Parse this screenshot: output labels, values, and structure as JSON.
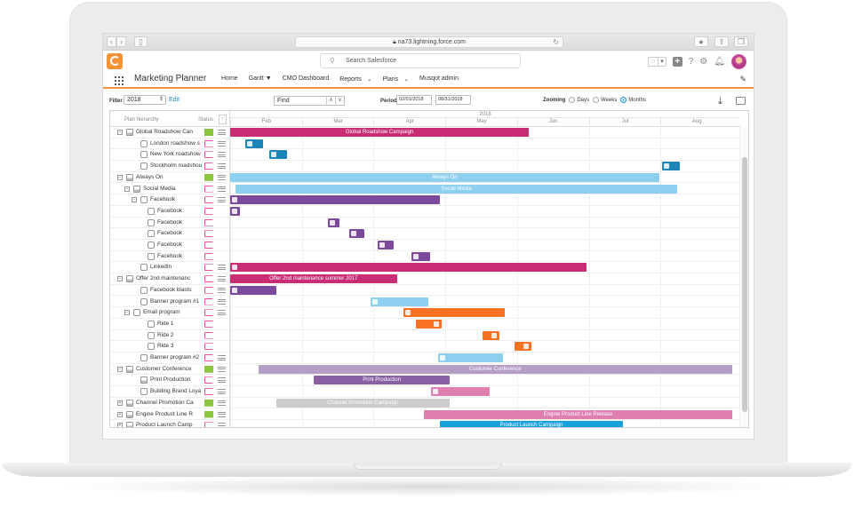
{
  "browser": {
    "url": "na73.lightning.force.com",
    "back": "‹",
    "forward": "›"
  },
  "header": {
    "search_placeholder": "Search Salesforce",
    "app_name": "Marketing Planner",
    "nav": [
      {
        "label": "Home"
      },
      {
        "label": "Gantt ▼"
      },
      {
        "label": "CMO Dashboard"
      },
      {
        "label": "Reports",
        "chevron": "⌄"
      },
      {
        "label": "Plans",
        "chevron": "⌄"
      },
      {
        "label": "Musqot admin"
      }
    ],
    "icons": [
      "favorites-star-icon",
      "add-icon",
      "help-icon",
      "setup-gear-icon",
      "notifications-bell-icon",
      "user-avatar"
    ]
  },
  "toolbar": {
    "filter_label": "Filter",
    "filter_value": "2018",
    "edit_label": "Edit",
    "find_placeholder": "Find",
    "period_label": "Period",
    "period_start": "02/01/2018",
    "period_end": "08/31/2018",
    "zooming_label": "Zooming",
    "zoom_options": [
      "Days",
      "Weeks",
      "Months"
    ],
    "zoom_selected": "Months"
  },
  "gantt": {
    "columns": {
      "hierarchy": "Plan hierarchy",
      "status": "Status"
    },
    "year": "2018",
    "months": [
      "Feb",
      "Mar",
      "Apr",
      "May",
      "Jun",
      "Jul",
      "Aug"
    ],
    "colors": {
      "magenta": "#c92d74",
      "light_blue": "#8dcfee",
      "dark_blue": "#1b85b8",
      "purple": "#7b4a9a",
      "orange": "#f97224",
      "lavender": "#b49ec6",
      "mauve": "#8a5fa3",
      "pink": "#df7fb0",
      "gray": "#cccccc",
      "bright_blue": "#1aa0dc",
      "status_green": "#8cc63f",
      "status_pink": "#e0529c"
    },
    "rows": [
      {
        "label": "Global Roadshow Can",
        "indent": 0,
        "toggle": "−",
        "type": "plan",
        "status": "green",
        "menu": true,
        "bar": {
          "start": 0,
          "end": 59.5,
          "color": "#c92d74",
          "text": "Global Roadshow Campaign"
        }
      },
      {
        "label": "London roadshow s",
        "indent": 2,
        "type": "activity",
        "status": "pink",
        "menu": true,
        "bar": {
          "start": 3,
          "end": 6.5,
          "color": "#1b85b8",
          "text": "",
          "icon": true
        }
      },
      {
        "label": "New York roadshow",
        "indent": 2,
        "type": "activity",
        "status": "pink",
        "menu": true,
        "bar": {
          "start": 7.8,
          "end": 11.3,
          "color": "#1b85b8",
          "text": "",
          "icon": true
        }
      },
      {
        "label": "Stockholm roadshou",
        "indent": 2,
        "type": "activity",
        "status": "pink",
        "menu": true,
        "bar": {
          "start": 86,
          "end": 89.5,
          "color": "#1b85b8",
          "text": "",
          "icon": true
        }
      },
      {
        "label": "Always On",
        "indent": 0,
        "toggle": "−",
        "type": "plan",
        "status": "green",
        "menu": true,
        "bar": {
          "start": 0,
          "end": 85.4,
          "color": "#8dcfee",
          "text": "Always On"
        }
      },
      {
        "label": "Social Media",
        "indent": 1,
        "toggle": "−",
        "type": "plan",
        "status": "pink",
        "menu": true,
        "bar": {
          "start": 1.1,
          "end": 89,
          "color": "#8dcfee",
          "text": "Social Media"
        }
      },
      {
        "label": "Facebook",
        "indent": 2,
        "toggle": "−",
        "type": "activity",
        "status": "pink",
        "menu": true,
        "bar": {
          "start": 0,
          "end": 41.8,
          "color": "#7b4a9a",
          "text": "",
          "icon": true
        }
      },
      {
        "label": "Facebook",
        "indent": 3,
        "type": "activity",
        "status": "pink",
        "menu": false,
        "bar": {
          "start": 0,
          "end": 1.9,
          "color": "#7b4a9a",
          "text": "",
          "icon": true
        }
      },
      {
        "label": "Facebook",
        "indent": 3,
        "type": "activity",
        "status": "pink",
        "menu": false,
        "bar": {
          "start": 19.5,
          "end": 21.8,
          "color": "#7b4a9a",
          "text": "",
          "icon": true
        }
      },
      {
        "label": "Facebook",
        "indent": 3,
        "type": "activity",
        "status": "pink",
        "menu": false,
        "bar": {
          "start": 23.8,
          "end": 26.7,
          "color": "#7b4a9a",
          "text": "",
          "icon": true
        }
      },
      {
        "label": "Facebook",
        "indent": 3,
        "type": "activity",
        "status": "pink",
        "menu": false,
        "bar": {
          "start": 29.4,
          "end": 32.5,
          "color": "#7b4a9a",
          "text": "",
          "icon": true
        }
      },
      {
        "label": "Facebook",
        "indent": 3,
        "type": "activity",
        "status": "pink",
        "menu": false,
        "bar": {
          "start": 36.1,
          "end": 39.9,
          "color": "#7b4a9a",
          "text": "",
          "icon": true
        }
      },
      {
        "label": "LinkedIn",
        "indent": 2,
        "type": "activity",
        "status": "pink",
        "menu": true,
        "bar": {
          "start": 0,
          "end": 71,
          "color": "#c92d74",
          "text": "",
          "icon": true
        }
      },
      {
        "label": "Offer 2nd maintenanc",
        "indent": 0,
        "toggle": "−",
        "type": "plan",
        "status": "pink",
        "menu": true,
        "bar": {
          "start": 0,
          "end": 33.2,
          "color": "#c92d74",
          "text": "Offer 2nd maintenance summer 2017"
        }
      },
      {
        "label": "Facebook blasts",
        "indent": 2,
        "type": "activity",
        "status": "pink",
        "menu": true,
        "bar": {
          "start": 0,
          "end": 9.2,
          "color": "#7b4a9a",
          "text": "",
          "icon": true
        }
      },
      {
        "label": "Banner program #1",
        "indent": 2,
        "type": "activity",
        "status": "pink",
        "menu": true,
        "bar": {
          "start": 27.9,
          "end": 39.4,
          "color": "#8dcfee",
          "text": "",
          "icon": true
        }
      },
      {
        "label": "Email program",
        "indent": 1,
        "toggle": "−",
        "type": "activity",
        "status": "pink",
        "menu": true,
        "bar": {
          "start": 34.6,
          "end": 54.7,
          "color": "#f97224",
          "text": "",
          "icon": true
        }
      },
      {
        "label": "Ride 1",
        "indent": 3,
        "type": "activity",
        "status": "pink",
        "menu": false,
        "bar": {
          "start": 37,
          "end": 42.2,
          "color": "#f97224",
          "text": "",
          "icon": true,
          "icon_right": true
        }
      },
      {
        "label": "Ride 2",
        "indent": 3,
        "type": "activity",
        "status": "pink",
        "menu": false,
        "bar": {
          "start": 50.2,
          "end": 53.6,
          "color": "#f97224",
          "text": "",
          "icon": true,
          "icon_right": true
        }
      },
      {
        "label": "Ride 3",
        "indent": 3,
        "type": "activity",
        "status": "pink",
        "menu": false,
        "bar": {
          "start": 56.7,
          "end": 60,
          "color": "#f97224",
          "text": "",
          "icon": true,
          "icon_right": true
        }
      },
      {
        "label": "Banner program #2",
        "indent": 2,
        "type": "activity",
        "status": "pink",
        "menu": true,
        "bar": {
          "start": 41.4,
          "end": 54.3,
          "color": "#8dcfee",
          "text": "",
          "icon": true
        }
      },
      {
        "label": "Customer Conference",
        "indent": 0,
        "toggle": "−",
        "type": "plan",
        "status": "green",
        "menu": true,
        "bar": {
          "start": 5.6,
          "end": 100,
          "color": "#b49ec6",
          "text": "Customer Conference"
        }
      },
      {
        "label": "Print Production",
        "indent": 2,
        "type": "plan",
        "status": "pink",
        "menu": true,
        "bar": {
          "start": 16.7,
          "end": 43.7,
          "color": "#8a5fa3",
          "text": "Print Production"
        }
      },
      {
        "label": "Building Brand Loya",
        "indent": 2,
        "type": "activity",
        "status": "pink",
        "menu": true,
        "bar": {
          "start": 40,
          "end": 51.6,
          "color": "#df7fb0",
          "text": "",
          "icon": true
        }
      },
      {
        "label": "Channel Promotion Ca",
        "indent": 0,
        "toggle": "+",
        "type": "plan",
        "status": "green",
        "menu": true,
        "bar": {
          "start": 9.2,
          "end": 43.7,
          "color": "#cccccc",
          "text": "Channel Promotion Campaign"
        }
      },
      {
        "label": "Engine Product Line R",
        "indent": 0,
        "toggle": "+",
        "type": "plan",
        "status": "green",
        "menu": true,
        "bar": {
          "start": 38.6,
          "end": 100,
          "color": "#df7fb0",
          "text": "Engine Product Line Release"
        }
      },
      {
        "label": "Product Launch Camp",
        "indent": 0,
        "toggle": "+",
        "type": "plan",
        "status": "pink",
        "menu": true,
        "bar": {
          "start": 41.8,
          "end": 78.2,
          "color": "#1aa0dc",
          "text": "Product Launch Campaign"
        }
      }
    ]
  }
}
